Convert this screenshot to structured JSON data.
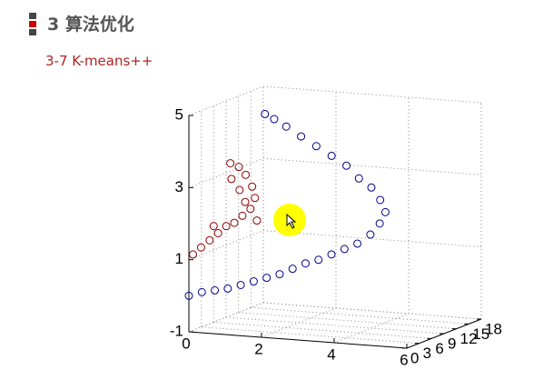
{
  "header": {
    "title": "3 算法优化",
    "subtitle": "3-7  K-means++"
  },
  "chart_data": {
    "type": "scatter3d",
    "xlim": [
      0,
      6
    ],
    "ylim": [
      0,
      18
    ],
    "zlim": [
      -1,
      5
    ],
    "xticks": [
      0,
      2,
      4,
      6
    ],
    "yticks": [
      0,
      3,
      6,
      9,
      12,
      15,
      18
    ],
    "zticks": [
      -1,
      1,
      3,
      5
    ],
    "grid": true,
    "series": [
      {
        "color": "#00008b",
        "x": [
          0,
          0.3,
          0.6,
          0.9,
          1.2,
          1.5,
          1.8,
          2.1,
          2.4,
          2.7,
          3,
          3.3,
          3.6,
          3.9,
          4.2,
          4.4,
          4.5,
          4.3,
          4.0,
          3.6,
          3.2,
          2.7,
          2.2,
          1.7,
          1.2,
          0.8,
          0.5
        ],
        "y": [
          0,
          0.5,
          1,
          1.5,
          2,
          2.5,
          3,
          3.5,
          4,
          4.5,
          5,
          5.5,
          6,
          6.5,
          7,
          7.5,
          8,
          8.5,
          9,
          9.5,
          10,
          10.8,
          11.5,
          12.2,
          13,
          13.6,
          14
        ],
        "z": [
          0,
          0.1,
          0.15,
          0.2,
          0.3,
          0.4,
          0.5,
          0.6,
          0.75,
          0.9,
          1.0,
          1.15,
          1.3,
          1.45,
          1.7,
          2.0,
          2.3,
          2.6,
          2.9,
          3.1,
          3.4,
          3.6,
          3.8,
          4.0,
          4.2,
          4.35,
          4.45
        ]
      },
      {
        "color": "#8b0000",
        "x": [
          0,
          0.2,
          0.4,
          0.6,
          0.8,
          1,
          1.2,
          1.4,
          1.5,
          1.4,
          1.2,
          1,
          0.8,
          1.3,
          1.1,
          0.9,
          0.5,
          1.6
        ],
        "y": [
          1,
          1.2,
          1.5,
          1.8,
          2,
          2.2,
          2.4,
          2.6,
          2.8,
          3,
          3.2,
          3.3,
          3,
          2.2,
          2.6,
          2.4,
          1.6,
          2.4
        ],
        "z": [
          1.1,
          1.3,
          1.5,
          1.7,
          1.9,
          2.0,
          2.2,
          2.4,
          2.7,
          3.0,
          3.3,
          3.5,
          3.6,
          2.6,
          2.9,
          3.2,
          1.9,
          2.1
        ]
      }
    ]
  }
}
